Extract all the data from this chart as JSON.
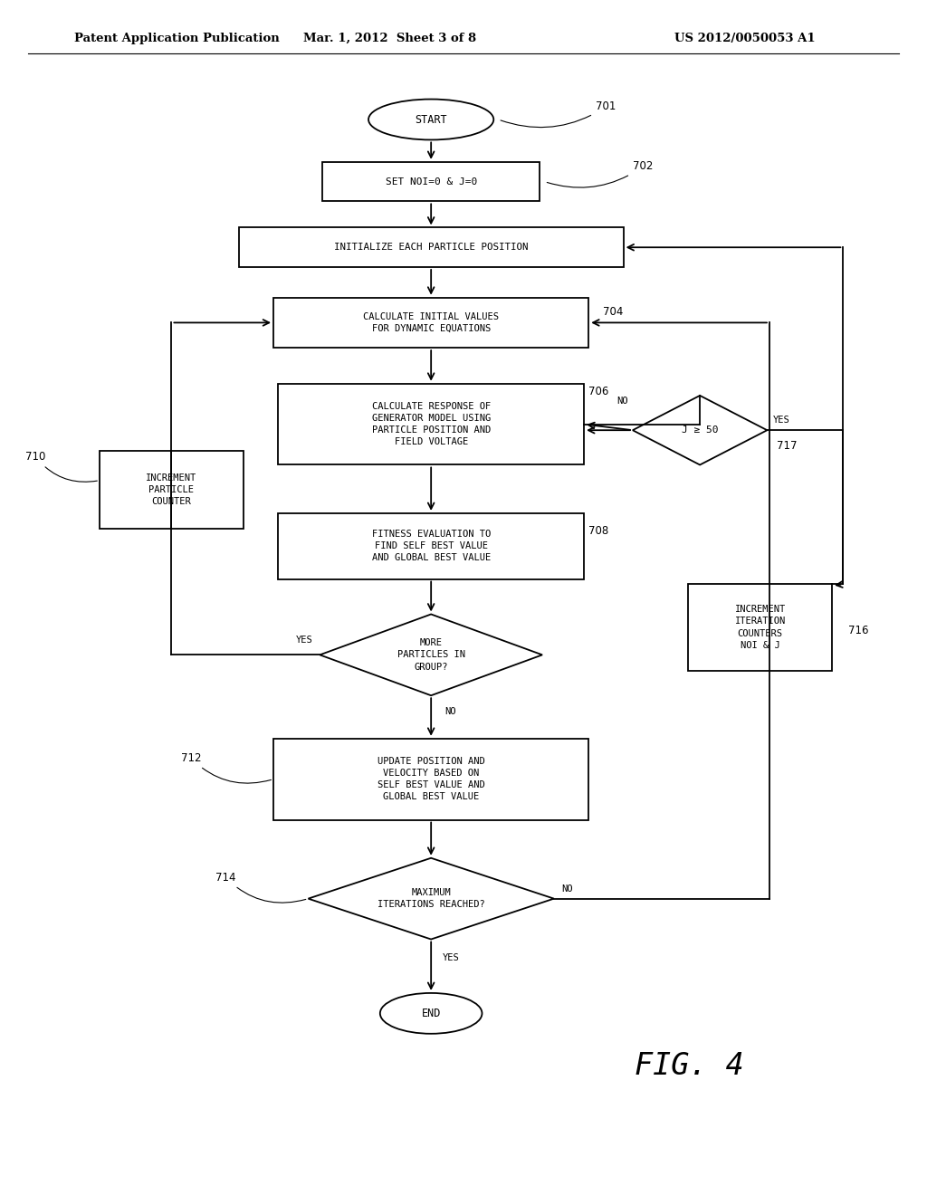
{
  "bg_color": "#ffffff",
  "header_left": "Patent Application Publication",
  "header_mid": "Mar. 1, 2012  Sheet 3 of 8",
  "header_right": "US 2012/0050053 A1"
}
